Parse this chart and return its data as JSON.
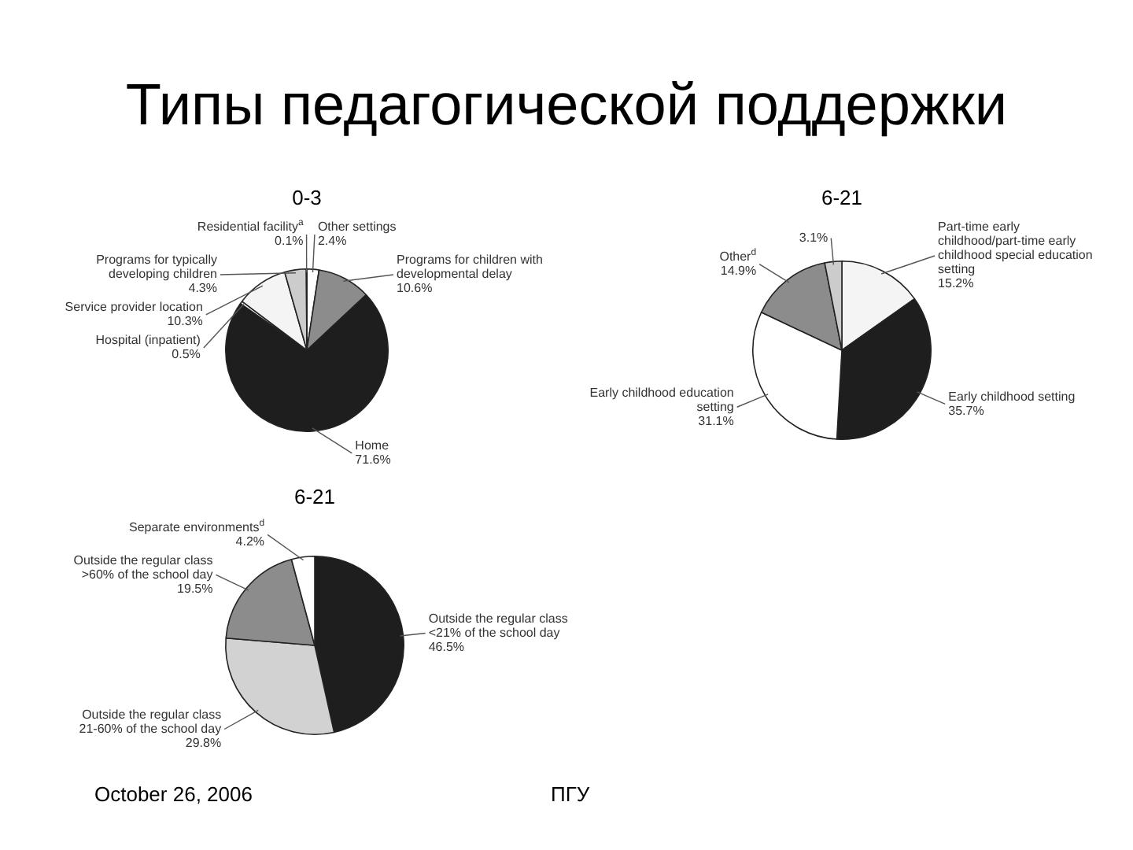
{
  "chart_data": [
    {
      "type": "pie",
      "title": "0-3",
      "annotations": [
        "Типы педагогической поддержки",
        "October 26, 2006",
        "ПГУ"
      ],
      "legend": false,
      "categories": [
        "Other settings",
        "Programs for children with developmental delay",
        "Home",
        "Hospital (inpatient)",
        "Service provider location",
        "Programs for typically developing children",
        "Residential facility$^{a}$"
      ],
      "values": [
        2.4,
        10.6,
        71.6,
        0.5,
        10.3,
        4.3,
        0.1
      ],
      "value_labels": [
        "2.4%",
        "10.6%",
        "71.6%",
        "0.5%",
        "10.3%",
        "4.3%",
        "0.1%"
      ],
      "colors": [
        "#ffffff",
        "#8c8c8c",
        "#1e1e1e",
        "#ffffff",
        "#f4f4f4",
        "#cccccc",
        "#eeeeee"
      ]
    },
    {
      "type": "pie",
      "title": "6-21",
      "legend": false,
      "categories": [
        "Part-time early childhood/part-time early childhood special education setting",
        "Early childhood setting",
        "Early childhood education setting",
        "Other$^{d}$",
        null
      ],
      "values": [
        15.2,
        35.7,
        31.1,
        14.9,
        3.1
      ],
      "value_labels": [
        "15.2%",
        "35.7%",
        "31.1%",
        "14.9%",
        "3.1%"
      ],
      "colors": [
        "#f4f4f4",
        "#1e1e1e",
        "#ffffff",
        "#8c8c8c",
        "#cccccc"
      ]
    },
    {
      "type": "pie",
      "title": "6-21",
      "legend": false,
      "categories": [
        "Outside the regular class <21% of the school day",
        "Outside the regular class 21-60% of the school day",
        "Outside the regular class >60% of the school day",
        "Separate environments$^{d}$"
      ],
      "values": [
        46.5,
        29.8,
        19.5,
        4.2
      ],
      "value_labels": [
        "46.5%",
        "29.8%",
        "19.5%",
        "4.2%"
      ],
      "colors": [
        "#1e1e1e",
        "#d2d2d2",
        "#8c8c8c",
        "#ffffff"
      ]
    }
  ]
}
